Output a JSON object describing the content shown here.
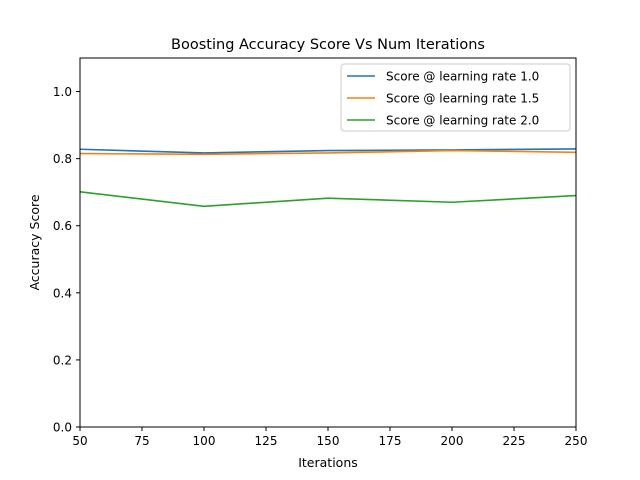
{
  "chart_data": {
    "type": "line",
    "title": "Boosting Accuracy Score Vs Num Iterations",
    "xlabel": "Iterations",
    "ylabel": "Accuracy Score",
    "xlim": [
      50,
      250
    ],
    "ylim": [
      0.0,
      1.1
    ],
    "xticks": [
      50,
      75,
      100,
      125,
      150,
      175,
      200,
      225,
      250
    ],
    "xtick_labels": [
      "50",
      "75",
      "100",
      "125",
      "150",
      "175",
      "200",
      "225",
      "250"
    ],
    "yticks": [
      0.0,
      0.2,
      0.4,
      0.6,
      0.8,
      1.0
    ],
    "ytick_labels": [
      "0.0",
      "0.2",
      "0.4",
      "0.6",
      "0.8",
      "1.0"
    ],
    "grid": false,
    "legend_position": "top-right",
    "x": [
      50,
      100,
      150,
      200,
      250
    ],
    "series": [
      {
        "name": "Score @ learning rate 1.0",
        "color": "#1f77b4",
        "values": [
          0.828,
          0.817,
          0.824,
          0.826,
          0.829
        ]
      },
      {
        "name": "Score @ learning rate 1.5",
        "color": "#ff7f0e",
        "values": [
          0.815,
          0.813,
          0.817,
          0.824,
          0.819
        ]
      },
      {
        "name": "Score @ learning rate 2.0",
        "color": "#2ca02c",
        "values": [
          0.701,
          0.658,
          0.682,
          0.67,
          0.69
        ]
      }
    ]
  }
}
